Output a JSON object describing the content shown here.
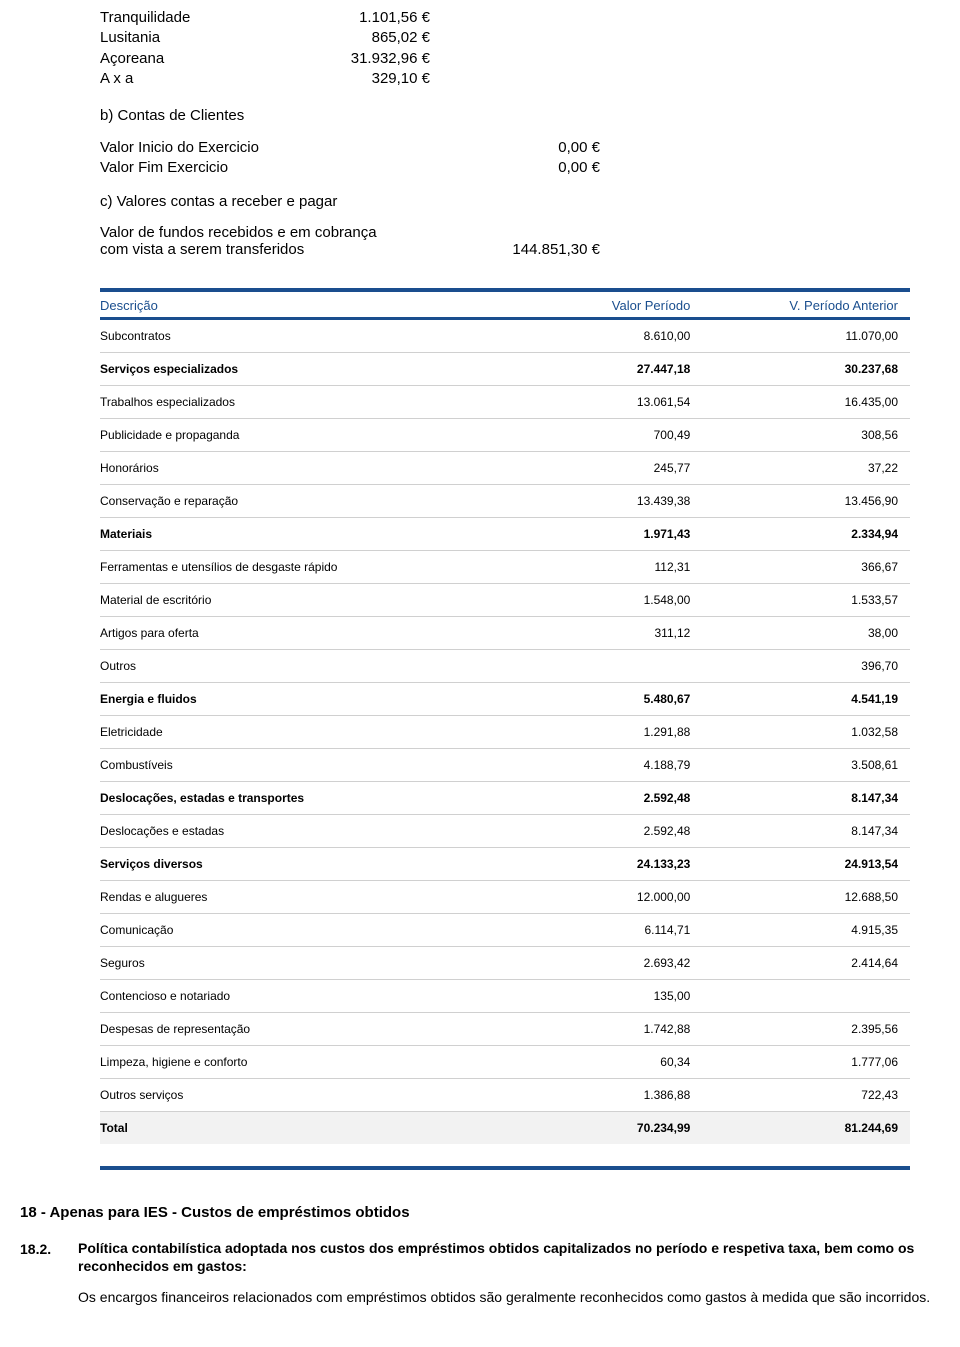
{
  "top_list": [
    {
      "label": "Tranquilidade",
      "value": "1.101,56 €"
    },
    {
      "label": "Lusitania",
      "value": "865,02 €"
    },
    {
      "label": "Açoreana",
      "value": "31.932,96 €"
    },
    {
      "label": "A x a",
      "value": "329,10 €"
    }
  ],
  "section_b_title": "b) Contas de Clientes",
  "section_b_fields": [
    {
      "label": "Valor Inicio do Exercicio",
      "value": "0,00 €"
    },
    {
      "label": "Valor Fim Exercicio",
      "value": "0,00 €"
    }
  ],
  "section_c_title": "c) Valores contas a receber e pagar",
  "fundos_label1": "Valor de fundos recebidos e em cobrança",
  "fundos_label2": "com vista a serem transferidos",
  "fundos_value": "144.851,30 €",
  "table_headers": {
    "desc": "Descrição",
    "periodo": "Valor Período",
    "anterior": "V. Período Anterior"
  },
  "table_rows": [
    {
      "desc": "Subcontratos",
      "v1": "8.610,00",
      "v2": "11.070,00",
      "bold": false
    },
    {
      "desc": "Serviços especializados",
      "v1": "27.447,18",
      "v2": "30.237,68",
      "bold": true
    },
    {
      "desc": "Trabalhos especializados",
      "v1": "13.061,54",
      "v2": "16.435,00",
      "bold": false
    },
    {
      "desc": "Publicidade e propaganda",
      "v1": "700,49",
      "v2": "308,56",
      "bold": false
    },
    {
      "desc": "Honorários",
      "v1": "245,77",
      "v2": "37,22",
      "bold": false
    },
    {
      "desc": "Conservação e reparação",
      "v1": "13.439,38",
      "v2": "13.456,90",
      "bold": false
    },
    {
      "desc": "Materiais",
      "v1": "1.971,43",
      "v2": "2.334,94",
      "bold": true
    },
    {
      "desc": "Ferramentas e utensílios de desgaste rápido",
      "v1": "112,31",
      "v2": "366,67",
      "bold": false
    },
    {
      "desc": "Material de escritório",
      "v1": "1.548,00",
      "v2": "1.533,57",
      "bold": false
    },
    {
      "desc": "Artigos para oferta",
      "v1": "311,12",
      "v2": "38,00",
      "bold": false
    },
    {
      "desc": "Outros",
      "v1": "",
      "v2": "396,70",
      "bold": false
    },
    {
      "desc": "Energia e fluidos",
      "v1": "5.480,67",
      "v2": "4.541,19",
      "bold": true
    },
    {
      "desc": "Eletricidade",
      "v1": "1.291,88",
      "v2": "1.032,58",
      "bold": false
    },
    {
      "desc": "Combustíveis",
      "v1": "4.188,79",
      "v2": "3.508,61",
      "bold": false
    },
    {
      "desc": "Deslocações, estadas e transportes",
      "v1": "2.592,48",
      "v2": "8.147,34",
      "bold": true
    },
    {
      "desc": "Deslocações e estadas",
      "v1": "2.592,48",
      "v2": "8.147,34",
      "bold": false
    },
    {
      "desc": "Serviços diversos",
      "v1": "24.133,23",
      "v2": "24.913,54",
      "bold": true
    },
    {
      "desc": "Rendas e alugueres",
      "v1": "12.000,00",
      "v2": "12.688,50",
      "bold": false
    },
    {
      "desc": "Comunicação",
      "v1": "6.114,71",
      "v2": "4.915,35",
      "bold": false
    },
    {
      "desc": "Seguros",
      "v1": "2.693,42",
      "v2": "2.414,64",
      "bold": false
    },
    {
      "desc": "Contencioso e notariado",
      "v1": "135,00",
      "v2": "",
      "bold": false
    },
    {
      "desc": "Despesas de representação",
      "v1": "1.742,88",
      "v2": "2.395,56",
      "bold": false
    },
    {
      "desc": "Limpeza, higiene e conforto",
      "v1": "60,34",
      "v2": "1.777,06",
      "bold": false
    },
    {
      "desc": "Outros serviços",
      "v1": "1.386,88",
      "v2": "722,43",
      "bold": false
    }
  ],
  "table_total": {
    "desc": "Total",
    "v1": "70.234,99",
    "v2": "81.244,69"
  },
  "section18_title": "18 - Apenas para IES - Custos de empréstimos obtidos",
  "section18_2_num": "18.2.",
  "section18_2_lead": "Política contabilística adoptada nos custos dos empréstimos obtidos capitalizados no período e respetiva taxa, bem como os reconhecidos em gastos:",
  "section18_2_body": "Os encargos financeiros relacionados com empréstimos obtidos são geralmente reconhecidos como gastos à medida que são incorridos.",
  "colors": {
    "header_blue": "#1a4e8e",
    "row_border": "#d0d0d0",
    "total_bg": "#f2f2f2"
  }
}
